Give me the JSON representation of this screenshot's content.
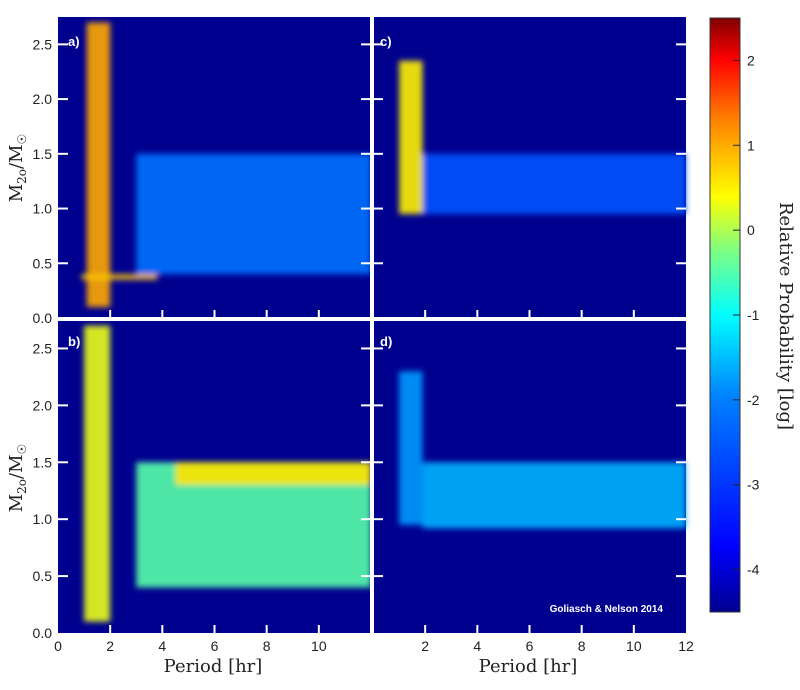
{
  "chart_data": [
    {
      "panel": "a)",
      "type": "heatmap",
      "x_label": "Period [hr]",
      "y_label": "M2o/M☉",
      "x_range": [
        0,
        12
      ],
      "y_range": [
        0,
        2.75
      ],
      "y_ticks": [
        "0.0",
        "0.5",
        "1.0",
        "1.5",
        "2.0",
        "2.5"
      ],
      "features": [
        {
          "x": [
            1.1,
            2.0
          ],
          "y": [
            0.1,
            2.7
          ],
          "level": 1.0
        },
        {
          "x": [
            3.0,
            12
          ],
          "y": [
            0.4,
            1.5
          ],
          "level": -2.2
        },
        {
          "x": [
            0.9,
            3.8
          ],
          "y": [
            0.35,
            0.4
          ],
          "level": 0.8
        }
      ]
    },
    {
      "panel": "b)",
      "type": "heatmap",
      "x_label": "Period [hr]",
      "y_label": "M2o/M☉",
      "x_range": [
        0,
        12
      ],
      "y_range": [
        0,
        2.75
      ],
      "x_ticks": [
        "0",
        "2",
        "4",
        "6",
        "8",
        "10"
      ],
      "y_ticks": [
        "0.0",
        "0.5",
        "1.0",
        "1.5",
        "2.0",
        "2.5"
      ],
      "features": [
        {
          "x": [
            1.0,
            2.0
          ],
          "y": [
            0.1,
            2.7
          ],
          "level": 0.3
        },
        {
          "x": [
            3.0,
            12
          ],
          "y": [
            0.4,
            1.5
          ],
          "level": -0.5
        },
        {
          "x": [
            4.5,
            12
          ],
          "y": [
            1.3,
            1.5
          ],
          "level": 0.6
        }
      ]
    },
    {
      "panel": "c)",
      "type": "heatmap",
      "x_range": [
        0,
        12
      ],
      "y_range": [
        0,
        2.75
      ],
      "features": [
        {
          "x": [
            1.0,
            1.9
          ],
          "y": [
            0.95,
            2.35
          ],
          "level": 0.5
        },
        {
          "x": [
            1.9,
            12
          ],
          "y": [
            0.95,
            1.5
          ],
          "level": -2.6
        }
      ]
    },
    {
      "panel": "d)",
      "type": "heatmap",
      "x_label": "Period [hr]",
      "x_range": [
        0,
        12
      ],
      "y_range": [
        0,
        2.75
      ],
      "x_ticks": [
        "2",
        "4",
        "6",
        "8",
        "10",
        "12"
      ],
      "credit": "Goliasch & Nelson 2014",
      "features": [
        {
          "x": [
            1.0,
            1.9
          ],
          "y": [
            0.95,
            2.3
          ],
          "level": -1.8
        },
        {
          "x": [
            1.9,
            12
          ],
          "y": [
            0.92,
            1.5
          ],
          "level": -1.6
        }
      ]
    }
  ],
  "colorbar": {
    "label": "Relative Probability [log]",
    "range": [
      -4.5,
      2.5
    ],
    "ticks": [
      "2",
      "1",
      "0",
      "-1",
      "-2",
      "-3",
      "-4"
    ],
    "colors": [
      "#00008f",
      "#0000ff",
      "#0080ff",
      "#00ffff",
      "#80ff80",
      "#ffff00",
      "#ff8000",
      "#ff0000",
      "#800000"
    ]
  },
  "background_color": "#00008f"
}
